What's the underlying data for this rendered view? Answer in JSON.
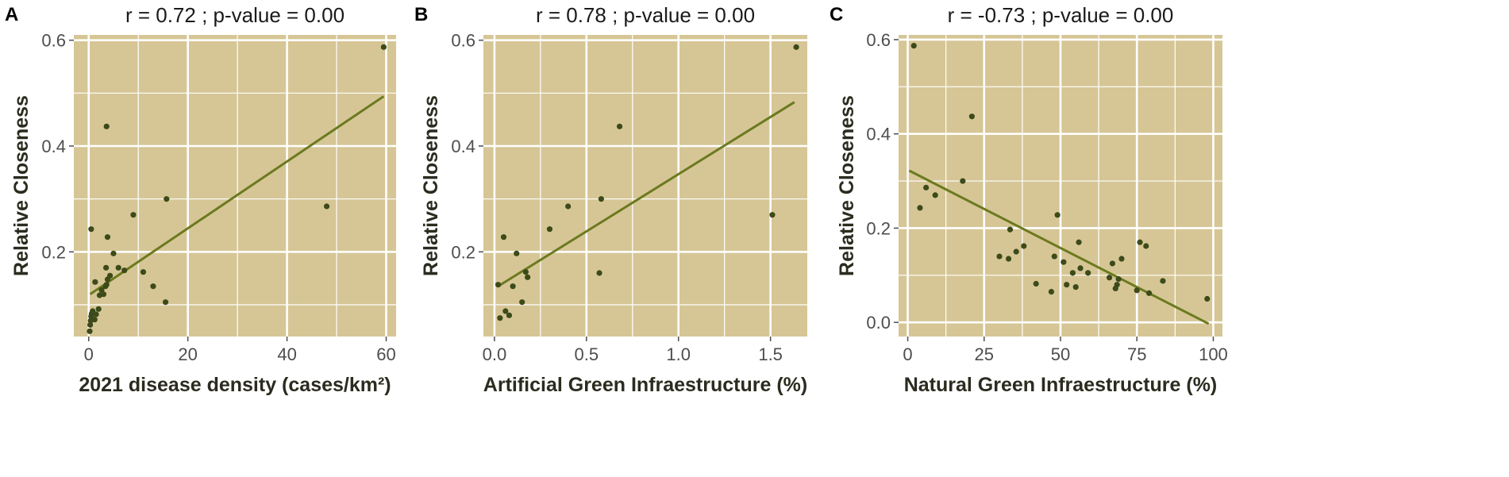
{
  "colors": {
    "panel_bg": "#d6c696",
    "grid": "#ffffff",
    "point": "#3d4a19",
    "line": "#6b7a1e",
    "tick": "#4d4d4d"
  },
  "chart_data": [
    {
      "type": "scatter",
      "panel_letter": "A",
      "title": "r = 0.72 ; p-value = 0.00",
      "xlabel": "2021 disease density (cases/km²)",
      "ylabel": "Relative Closeness",
      "xlim": [
        -3,
        62
      ],
      "ylim": [
        0.04,
        0.61
      ],
      "xticks": [
        0,
        20,
        40,
        60
      ],
      "xtick_labels": [
        "0",
        "20",
        "40",
        "60"
      ],
      "yticks": [
        0.2,
        0.4,
        0.6
      ],
      "ytick_labels": [
        "0.2",
        "0.4",
        "0.6"
      ],
      "grid": true,
      "points": [
        {
          "x": 0.2,
          "y": 0.05
        },
        {
          "x": 0.3,
          "y": 0.062
        },
        {
          "x": 0.4,
          "y": 0.07
        },
        {
          "x": 0.5,
          "y": 0.078
        },
        {
          "x": 0.6,
          "y": 0.083
        },
        {
          "x": 0.8,
          "y": 0.088
        },
        {
          "x": 1.2,
          "y": 0.072
        },
        {
          "x": 1.5,
          "y": 0.082
        },
        {
          "x": 2.0,
          "y": 0.092
        },
        {
          "x": 0.5,
          "y": 0.243
        },
        {
          "x": 1.3,
          "y": 0.143
        },
        {
          "x": 2.2,
          "y": 0.118
        },
        {
          "x": 2.6,
          "y": 0.128
        },
        {
          "x": 3.0,
          "y": 0.12
        },
        {
          "x": 3.4,
          "y": 0.135
        },
        {
          "x": 3.6,
          "y": 0.138
        },
        {
          "x": 3.8,
          "y": 0.148
        },
        {
          "x": 3.5,
          "y": 0.17
        },
        {
          "x": 4.3,
          "y": 0.155
        },
        {
          "x": 3.8,
          "y": 0.228
        },
        {
          "x": 3.6,
          "y": 0.437
        },
        {
          "x": 5.0,
          "y": 0.197
        },
        {
          "x": 6.0,
          "y": 0.17
        },
        {
          "x": 7.2,
          "y": 0.165
        },
        {
          "x": 9.0,
          "y": 0.27
        },
        {
          "x": 11.0,
          "y": 0.162
        },
        {
          "x": 13.0,
          "y": 0.135
        },
        {
          "x": 15.5,
          "y": 0.105
        },
        {
          "x": 15.7,
          "y": 0.3
        },
        {
          "x": 48.0,
          "y": 0.286
        },
        {
          "x": 59.5,
          "y": 0.587
        }
      ],
      "fit": {
        "x": [
          0.3,
          59.5
        ],
        "y": [
          0.12,
          0.494
        ]
      }
    },
    {
      "type": "scatter",
      "panel_letter": "B",
      "title": "r = 0.78 ; p-value = 0.00",
      "xlabel": "Artificial Green Infraestructure (%)",
      "ylabel": "Relative Closeness",
      "xlim": [
        -0.06,
        1.7
      ],
      "ylim": [
        0.04,
        0.61
      ],
      "xticks": [
        0.0,
        0.5,
        1.0,
        1.5
      ],
      "xtick_labels": [
        "0.0",
        "0.5",
        "1.0",
        "1.5"
      ],
      "yticks": [
        0.2,
        0.4,
        0.6
      ],
      "ytick_labels": [
        "0.2",
        "0.4",
        "0.6"
      ],
      "grid": true,
      "points": [
        {
          "x": 0.02,
          "y": 0.138
        },
        {
          "x": 0.03,
          "y": 0.075
        },
        {
          "x": 0.05,
          "y": 0.228
        },
        {
          "x": 0.06,
          "y": 0.088
        },
        {
          "x": 0.08,
          "y": 0.08
        },
        {
          "x": 0.1,
          "y": 0.135
        },
        {
          "x": 0.12,
          "y": 0.197
        },
        {
          "x": 0.15,
          "y": 0.105
        },
        {
          "x": 0.17,
          "y": 0.162
        },
        {
          "x": 0.18,
          "y": 0.152
        },
        {
          "x": 0.3,
          "y": 0.243
        },
        {
          "x": 0.4,
          "y": 0.286
        },
        {
          "x": 0.57,
          "y": 0.16
        },
        {
          "x": 0.58,
          "y": 0.3
        },
        {
          "x": 0.68,
          "y": 0.437
        },
        {
          "x": 1.51,
          "y": 0.27
        },
        {
          "x": 1.64,
          "y": 0.587
        }
      ],
      "fit": {
        "x": [
          0.02,
          1.63
        ],
        "y": [
          0.135,
          0.483
        ]
      }
    },
    {
      "type": "scatter",
      "panel_letter": "C",
      "title": "r = -0.73 ; p-value = 0.00",
      "xlabel": "Natural Green Infraestructure (%)",
      "ylabel": "Relative Closeness",
      "xlim": [
        -3,
        103
      ],
      "ylim": [
        -0.03,
        0.61
      ],
      "xticks": [
        0,
        25,
        50,
        75,
        100
      ],
      "xtick_labels": [
        "0",
        "25",
        "50",
        "75",
        "100"
      ],
      "yticks": [
        0.0,
        0.2,
        0.4,
        0.6
      ],
      "ytick_labels": [
        "0.0",
        "0.2",
        "0.4",
        "0.6"
      ],
      "grid": true,
      "points": [
        {
          "x": 2,
          "y": 0.587
        },
        {
          "x": 4,
          "y": 0.243
        },
        {
          "x": 6,
          "y": 0.286
        },
        {
          "x": 9,
          "y": 0.27
        },
        {
          "x": 18,
          "y": 0.3
        },
        {
          "x": 21,
          "y": 0.437
        },
        {
          "x": 30,
          "y": 0.14
        },
        {
          "x": 33,
          "y": 0.135
        },
        {
          "x": 33.5,
          "y": 0.197
        },
        {
          "x": 35.5,
          "y": 0.15
        },
        {
          "x": 38,
          "y": 0.162
        },
        {
          "x": 42,
          "y": 0.082
        },
        {
          "x": 47,
          "y": 0.065
        },
        {
          "x": 48,
          "y": 0.14
        },
        {
          "x": 49,
          "y": 0.228
        },
        {
          "x": 51,
          "y": 0.128
        },
        {
          "x": 52,
          "y": 0.08
        },
        {
          "x": 54,
          "y": 0.105
        },
        {
          "x": 55,
          "y": 0.075
        },
        {
          "x": 56,
          "y": 0.17
        },
        {
          "x": 56.5,
          "y": 0.115
        },
        {
          "x": 59,
          "y": 0.105
        },
        {
          "x": 66,
          "y": 0.095
        },
        {
          "x": 67,
          "y": 0.125
        },
        {
          "x": 68,
          "y": 0.072
        },
        {
          "x": 68.5,
          "y": 0.08
        },
        {
          "x": 69,
          "y": 0.092
        },
        {
          "x": 70,
          "y": 0.135
        },
        {
          "x": 75,
          "y": 0.068
        },
        {
          "x": 76,
          "y": 0.17
        },
        {
          "x": 78,
          "y": 0.162
        },
        {
          "x": 79,
          "y": 0.062
        },
        {
          "x": 83.5,
          "y": 0.088
        },
        {
          "x": 98,
          "y": 0.05
        }
      ],
      "fit": {
        "x": [
          0.5,
          98.5
        ],
        "y": [
          0.322,
          -0.003
        ]
      }
    }
  ]
}
